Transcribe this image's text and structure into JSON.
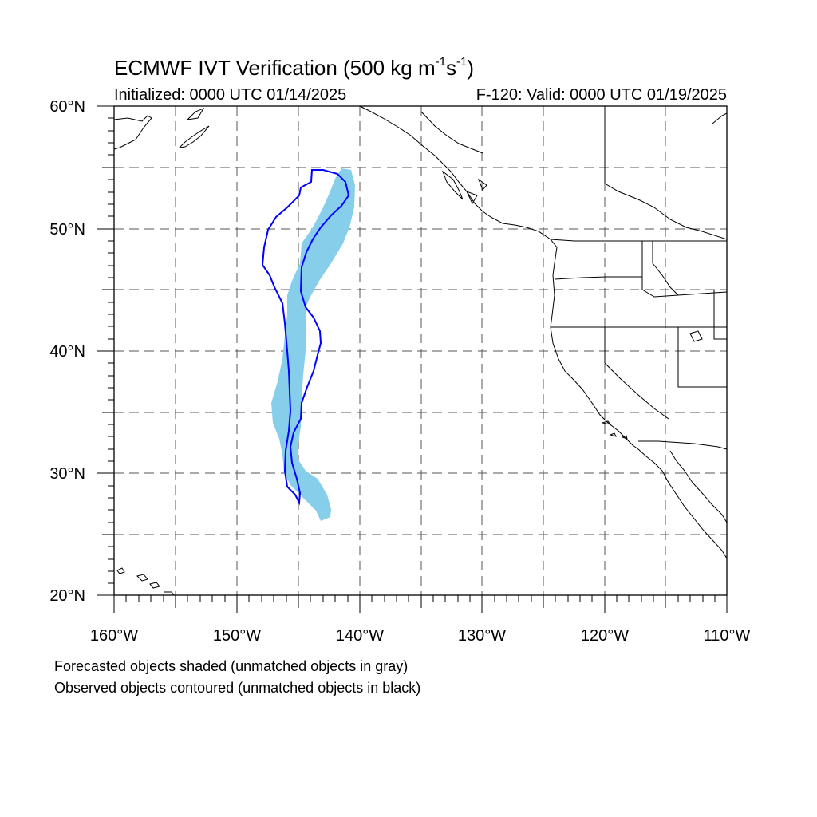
{
  "title": {
    "main": "ECMWF IVT Verification (500 kg m",
    "exp1": "-1",
    "mid": "s",
    "exp2": "-1",
    "end": ")"
  },
  "subtitle": {
    "left": "Initialized: 0000 UTC 01/14/2025",
    "right": "F-120: Valid: 0000 UTC 01/19/2025"
  },
  "captions": {
    "forecast": "Forecasted objects shaded (unmatched objects in gray)",
    "observed": "Observed objects contoured (unmatched objects in black)"
  },
  "axes": {
    "lat_labels": [
      "20°N",
      "30°N",
      "40°N",
      "50°N",
      "60°N"
    ],
    "lon_labels": [
      "160°W",
      "150°W",
      "140°W",
      "130°W",
      "120°W",
      "110°W"
    ]
  },
  "colors": {
    "forecast_fill": "#87ceeb",
    "observed_contour": "#0000ff",
    "coastline": "#000000",
    "grid": "#555555"
  }
}
